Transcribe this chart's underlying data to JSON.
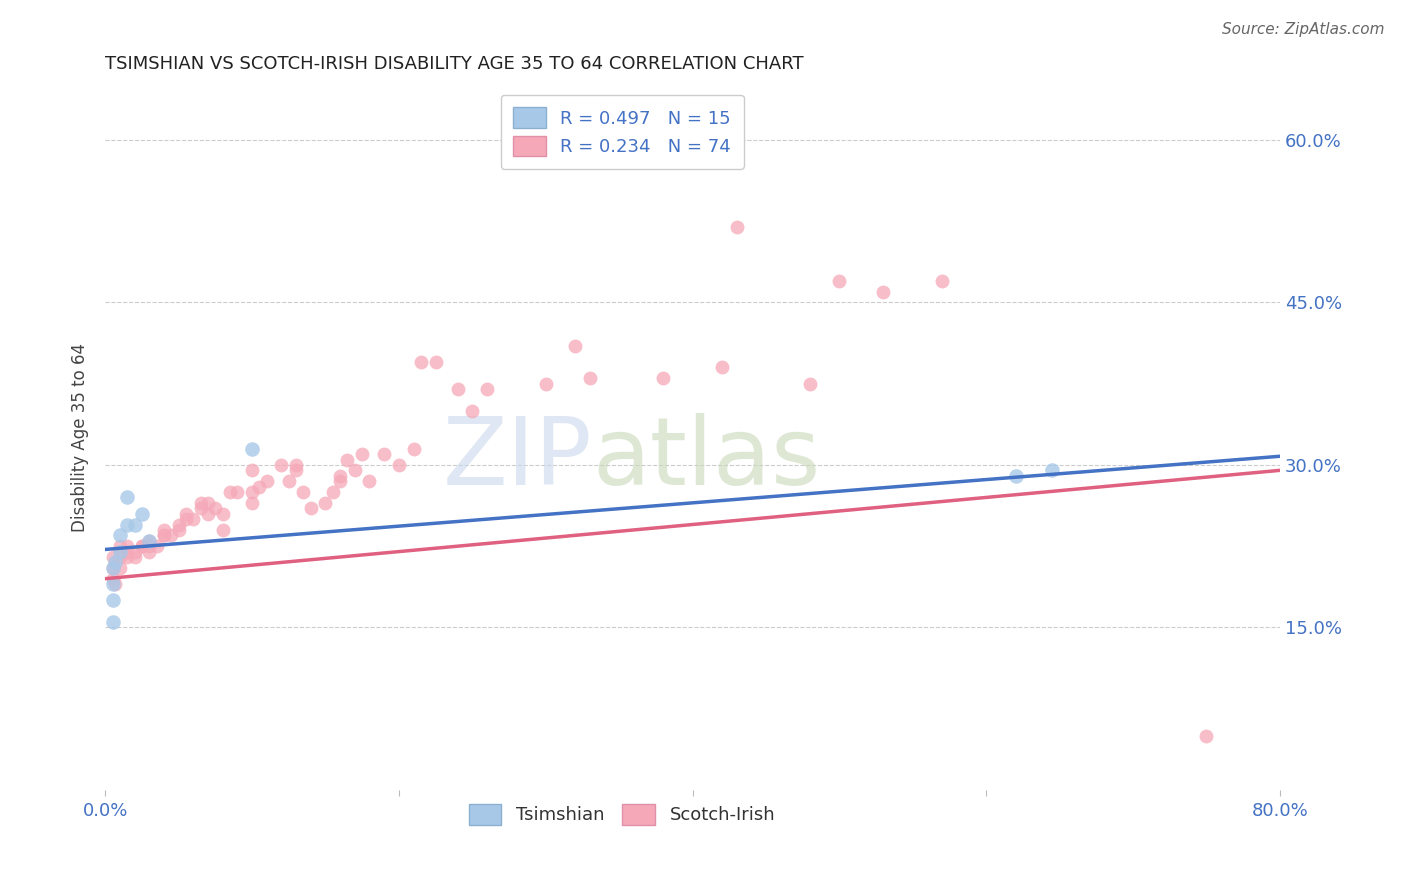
{
  "title": "TSIMSHIAN VS SCOTCH-IRISH DISABILITY AGE 35 TO 64 CORRELATION CHART",
  "source": "Source: ZipAtlas.com",
  "ylabel_label": "Disability Age 35 to 64",
  "xlim": [
    0.0,
    0.8
  ],
  "ylim": [
    0.0,
    0.65
  ],
  "ytick_positions": [
    0.15,
    0.3,
    0.45,
    0.6
  ],
  "ytick_labels": [
    "15.0%",
    "30.0%",
    "45.0%",
    "60.0%"
  ],
  "grid_color": "#cccccc",
  "background_color": "#ffffff",
  "tsimshian_color": "#a8c8e8",
  "scotch_irish_color": "#f5a8b8",
  "tsimshian_line_color": "#4472c4",
  "scotch_irish_line_color": "#e06080",
  "legend_r_tsimshian": "R = 0.497",
  "legend_n_tsimshian": "N = 15",
  "legend_r_scotch": "R = 0.234",
  "legend_n_scotch": "N = 74",
  "tsimshian_x": [
    0.005,
    0.005,
    0.005,
    0.005,
    0.007,
    0.01,
    0.01,
    0.015,
    0.015,
    0.02,
    0.025,
    0.03,
    0.1,
    0.62,
    0.645
  ],
  "tsimshian_y": [
    0.155,
    0.175,
    0.19,
    0.205,
    0.21,
    0.22,
    0.235,
    0.245,
    0.27,
    0.245,
    0.255,
    0.23,
    0.315,
    0.29,
    0.295
  ],
  "scotch_irish_x": [
    0.005,
    0.005,
    0.005,
    0.007,
    0.01,
    0.01,
    0.01,
    0.015,
    0.015,
    0.015,
    0.02,
    0.02,
    0.025,
    0.025,
    0.03,
    0.03,
    0.03,
    0.035,
    0.04,
    0.04,
    0.04,
    0.045,
    0.05,
    0.05,
    0.055,
    0.055,
    0.06,
    0.065,
    0.065,
    0.07,
    0.07,
    0.075,
    0.08,
    0.08,
    0.085,
    0.09,
    0.1,
    0.1,
    0.1,
    0.105,
    0.11,
    0.12,
    0.125,
    0.13,
    0.13,
    0.135,
    0.14,
    0.15,
    0.155,
    0.16,
    0.16,
    0.165,
    0.17,
    0.175,
    0.18,
    0.19,
    0.2,
    0.21,
    0.215,
    0.225,
    0.24,
    0.25,
    0.26,
    0.3,
    0.32,
    0.33,
    0.38,
    0.42,
    0.43,
    0.48,
    0.5,
    0.53,
    0.57,
    0.75
  ],
  "scotch_irish_y": [
    0.195,
    0.205,
    0.215,
    0.19,
    0.205,
    0.215,
    0.225,
    0.215,
    0.22,
    0.225,
    0.215,
    0.22,
    0.225,
    0.225,
    0.22,
    0.225,
    0.23,
    0.225,
    0.235,
    0.235,
    0.24,
    0.235,
    0.24,
    0.245,
    0.25,
    0.255,
    0.25,
    0.26,
    0.265,
    0.255,
    0.265,
    0.26,
    0.24,
    0.255,
    0.275,
    0.275,
    0.275,
    0.265,
    0.295,
    0.28,
    0.285,
    0.3,
    0.285,
    0.295,
    0.3,
    0.275,
    0.26,
    0.265,
    0.275,
    0.285,
    0.29,
    0.305,
    0.295,
    0.31,
    0.285,
    0.31,
    0.3,
    0.315,
    0.395,
    0.395,
    0.37,
    0.35,
    0.37,
    0.375,
    0.41,
    0.38,
    0.38,
    0.39,
    0.52,
    0.375,
    0.47,
    0.46,
    0.47,
    0.05
  ],
  "tsimshian_line_x": [
    0.0,
    0.8
  ],
  "tsimshian_line_y": [
    0.222,
    0.308
  ],
  "scotch_irish_line_x": [
    0.0,
    0.8
  ],
  "scotch_irish_line_y": [
    0.195,
    0.295
  ],
  "watermark_zip": "ZIP",
  "watermark_atlas": "atlas"
}
